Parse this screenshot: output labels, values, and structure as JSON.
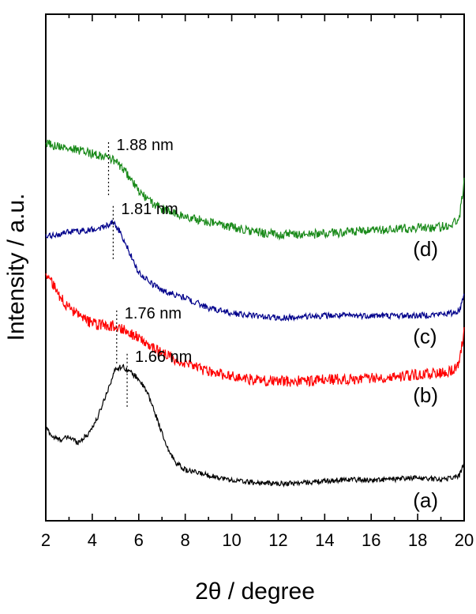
{
  "chart_data": {
    "type": "line",
    "title": "",
    "xlabel": "2θ / degree",
    "ylabel": "Intensity / a.u.",
    "xlim": [
      2,
      20
    ],
    "ylim": [
      0,
      1
    ],
    "x_ticks": [
      "2",
      "4",
      "6",
      "8",
      "10",
      "12",
      "14",
      "16",
      "18",
      "20"
    ],
    "series": [
      {
        "name": "(a)",
        "color": "#000000",
        "noise": 0.005,
        "x": [
          2,
          2.3,
          2.6,
          3.0,
          3.4,
          3.8,
          4.2,
          4.6,
          5.0,
          5.3,
          5.6,
          6.0,
          6.4,
          6.8,
          7.2,
          7.6,
          8.0,
          9,
          10,
          11,
          12,
          13,
          14,
          15,
          16,
          17,
          18,
          18.5,
          19,
          19.5,
          19.8,
          20
        ],
        "y": [
          0.185,
          0.165,
          0.16,
          0.165,
          0.155,
          0.17,
          0.2,
          0.25,
          0.3,
          0.305,
          0.295,
          0.28,
          0.25,
          0.2,
          0.145,
          0.115,
          0.1,
          0.09,
          0.08,
          0.075,
          0.073,
          0.075,
          0.078,
          0.082,
          0.08,
          0.082,
          0.085,
          0.083,
          0.082,
          0.085,
          0.09,
          0.115
        ]
      },
      {
        "name": "(b)",
        "color": "#ff0000",
        "noise": 0.011,
        "x": [
          2,
          2.5,
          3,
          3.5,
          4,
          4.5,
          5,
          5.5,
          6,
          6.5,
          7,
          8,
          9,
          10,
          11,
          12,
          13,
          14,
          15,
          16,
          17,
          18,
          19,
          19.5,
          19.8,
          20
        ],
        "y": [
          0.49,
          0.45,
          0.42,
          0.4,
          0.39,
          0.385,
          0.385,
          0.375,
          0.36,
          0.345,
          0.33,
          0.31,
          0.295,
          0.285,
          0.278,
          0.275,
          0.276,
          0.278,
          0.28,
          0.282,
          0.285,
          0.288,
          0.292,
          0.298,
          0.31,
          0.38
        ]
      },
      {
        "name": "(c)",
        "color": "#00008b",
        "noise": 0.006,
        "x": [
          2,
          2.5,
          3,
          3.5,
          4,
          4.5,
          4.9,
          5.2,
          5.6,
          6,
          6.5,
          7,
          8,
          9,
          10,
          11,
          12,
          13,
          14,
          15,
          16,
          17,
          18,
          19,
          19.5,
          19.8,
          20
        ],
        "y": [
          0.56,
          0.565,
          0.57,
          0.572,
          0.575,
          0.58,
          0.59,
          0.57,
          0.53,
          0.49,
          0.47,
          0.455,
          0.44,
          0.42,
          0.41,
          0.405,
          0.4,
          0.402,
          0.405,
          0.405,
          0.405,
          0.405,
          0.405,
          0.408,
          0.41,
          0.415,
          0.45
        ]
      },
      {
        "name": "(d)",
        "color": "#1a8a1a",
        "noise": 0.009,
        "x": [
          2,
          2.5,
          3,
          3.5,
          4,
          4.5,
          5,
          5.5,
          6,
          6.5,
          7,
          8,
          9,
          10,
          11,
          12,
          13,
          14,
          15,
          16,
          17,
          18,
          19,
          19.5,
          19.8,
          20
        ],
        "y": [
          0.745,
          0.74,
          0.735,
          0.73,
          0.725,
          0.72,
          0.71,
          0.685,
          0.65,
          0.63,
          0.615,
          0.6,
          0.59,
          0.58,
          0.57,
          0.565,
          0.565,
          0.567,
          0.57,
          0.572,
          0.575,
          0.578,
          0.58,
          0.585,
          0.6,
          0.67
        ]
      }
    ],
    "annotations": [
      {
        "text": "1.66 nm",
        "x": 5.5,
        "series": "(a)"
      },
      {
        "text": "1.76 nm",
        "x": 5.05,
        "series": "(b)"
      },
      {
        "text": "1.81 nm",
        "x": 4.9,
        "series": "(c)"
      },
      {
        "text": "1.88 nm",
        "x": 4.7,
        "series": "(d)"
      }
    ],
    "curve_labels": [
      "(a)",
      "(b)",
      "(c)",
      "(d)"
    ]
  }
}
